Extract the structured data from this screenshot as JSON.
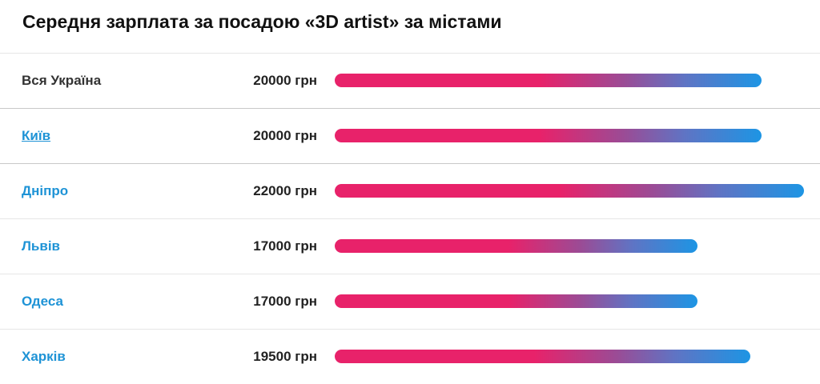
{
  "header": {
    "title": "Середня зарплата за посадою «3D artist» за містами"
  },
  "chart_data": {
    "type": "bar",
    "orientation": "horizontal",
    "title": "Середня зарплата за посадою «3D artist» за містами",
    "unit": "грн",
    "categories": [
      "Вся Україна",
      "Київ",
      "Дніпро",
      "Львів",
      "Одеса",
      "Харків"
    ],
    "values": [
      20000,
      20000,
      22000,
      17000,
      17000,
      19500
    ],
    "value_labels": [
      "20000 грн",
      "20000 грн",
      "22000 грн",
      "17000 грн",
      "17000 грн",
      "19500 грн"
    ],
    "colors": {
      "start": "#e8226a",
      "end": "#1d95e4",
      "link": "#1e93d6"
    }
  },
  "rows": [
    {
      "city": "Вся Україна",
      "salary": "20000 грн",
      "link": false,
      "underline": false
    },
    {
      "city": "Київ",
      "salary": "20000 грн",
      "link": true,
      "underline": true
    },
    {
      "city": "Дніпро",
      "salary": "22000 грн",
      "link": true,
      "underline": false
    },
    {
      "city": "Львів",
      "salary": "17000 грн",
      "link": true,
      "underline": false
    },
    {
      "city": "Одеса",
      "salary": "17000 грн",
      "link": true,
      "underline": false
    },
    {
      "city": "Харків",
      "salary": "19500 грн",
      "link": true,
      "underline": false
    }
  ]
}
